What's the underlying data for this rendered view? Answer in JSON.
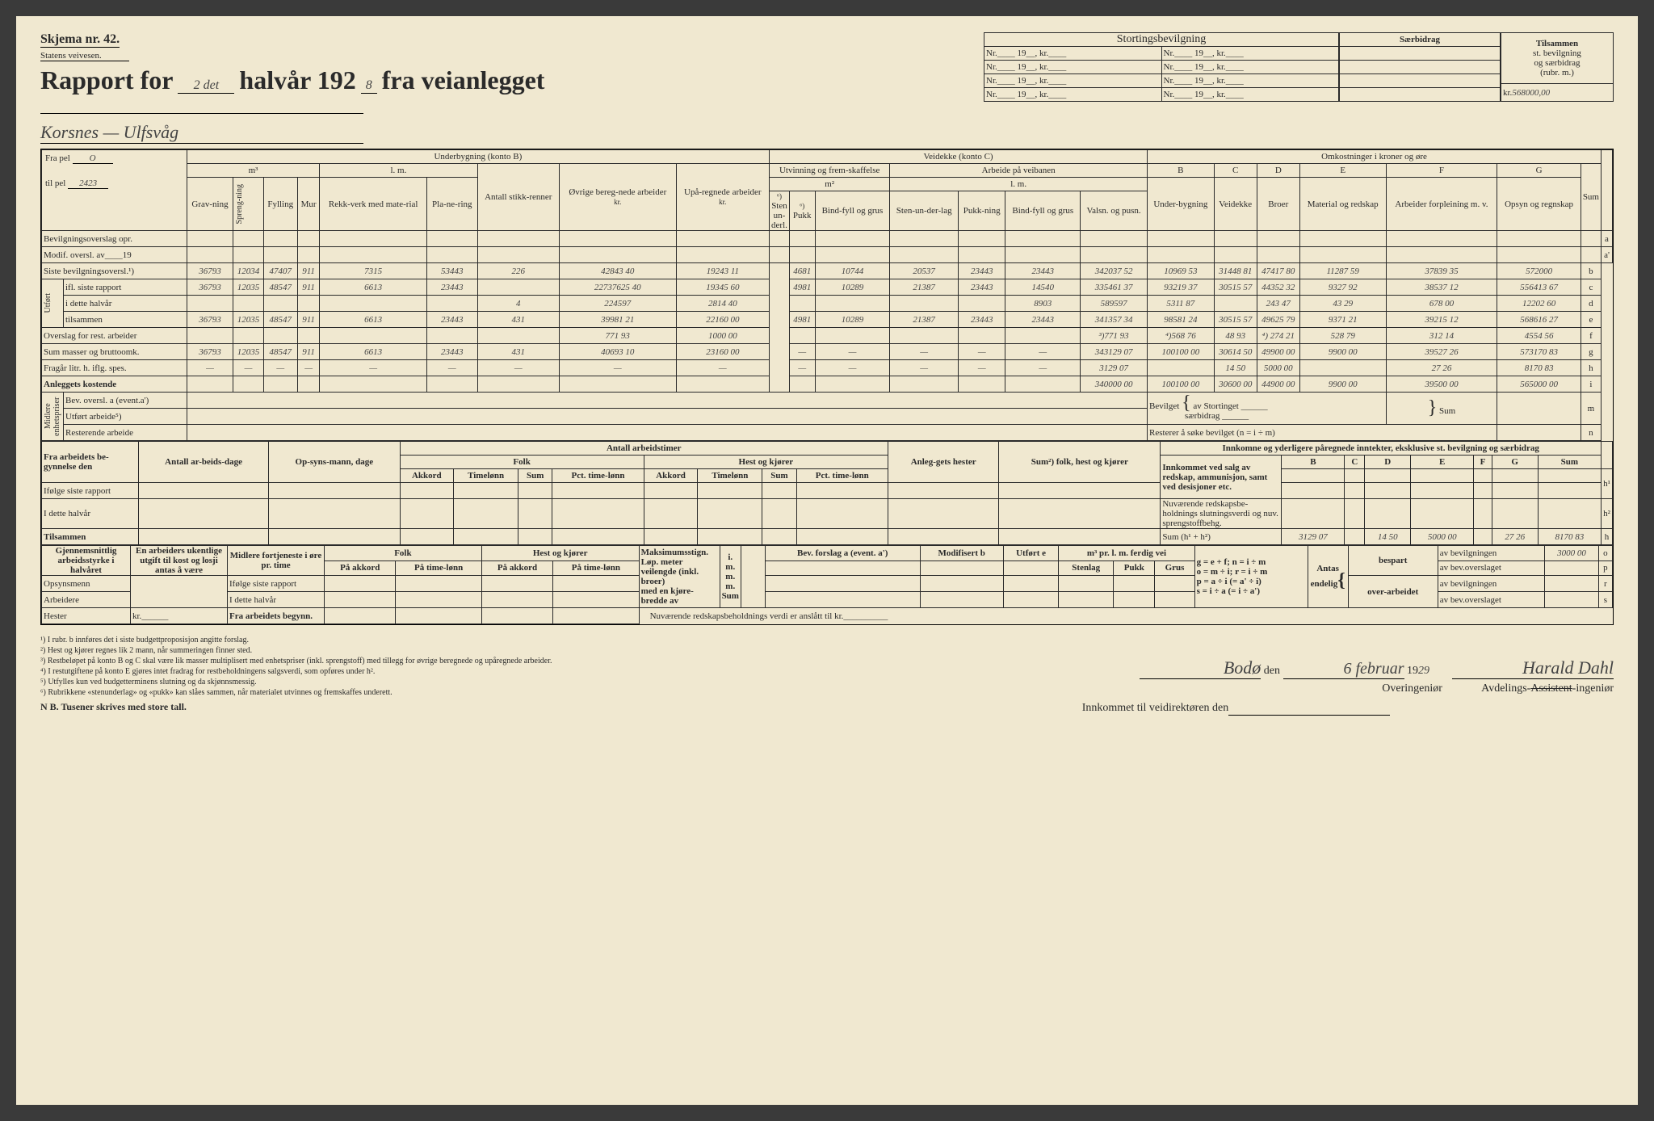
{
  "form": {
    "skjema": "Skjema nr. 42.",
    "statens": "Statens veivesen.",
    "rapport_for": "Rapport for",
    "halvaar_num": "2 det",
    "halvaar_label": "halvår 192",
    "year_digit": "8",
    "fra_vei": "fra veianlegget",
    "road_name": "Korsnes — Ulfsvåg"
  },
  "stortings": {
    "title": "Stortingsbevilgning",
    "rows": [
      [
        "Nr.",
        "19",
        ", kr.",
        "Nr.",
        "19",
        ", kr."
      ],
      [
        "Nr.",
        "19",
        ", kr.",
        "Nr.",
        "19",
        ", kr."
      ],
      [
        "Nr.",
        "19",
        ", kr.",
        "Nr.",
        "19",
        ", kr."
      ],
      [
        "Nr.",
        "19",
        ", kr.",
        "Nr.",
        "19",
        ", kr."
      ]
    ]
  },
  "saerbidrag": {
    "title": "Særbidrag"
  },
  "tilsammen": {
    "line1": "Tilsammen",
    "line2": "st. bevilgning",
    "line3": "og særbidrag",
    "line4": "(rubr. m.)",
    "kr_label": "kr.",
    "value": "568000,00"
  },
  "pel": {
    "fra": "Fra pel",
    "fra_val": "O",
    "til": "til pel",
    "til_val": "2423"
  },
  "section_headers": {
    "underbygning": "Underbygning (konto B)",
    "veidekke": "Veidekke (konto C)",
    "omkost": "Omkostninger i kroner og øre",
    "m3": "m³",
    "lm": "l. m.",
    "antall_stikk": "Antall stikk-renner",
    "ovrige": "Øvrige bereg-nede arbeider",
    "upa": "Upå-regnede arbeider",
    "utvinning": "Utvinning og frem-skaffelse",
    "m2": "m²",
    "arbeide_vei": "Arbeide på veibanen"
  },
  "cols_ub": [
    "Grav-ning",
    "Spreng-ning",
    "Fylling",
    "Mur",
    "Rekk-verk med mate-rial",
    "Pla-ne-ring"
  ],
  "cols_vd_m2": [
    "Sten un-derl.",
    "Pukk",
    "Bind-fyll og grus"
  ],
  "cols_vd_lm": [
    "Sten-un-der-lag",
    "Pukk-ning",
    "Bind-fyll og grus",
    "Valsn. og pusn."
  ],
  "cols_cost": {
    "B": "Under-bygning",
    "C": "Veidekke",
    "D": "Broer",
    "E": "Material og redskap",
    "F": "Arbeider forpleining m. v.",
    "G": "Opsyn og regnskap",
    "Sum": "Sum"
  },
  "row_letters": [
    "a",
    "a'",
    "b",
    "c",
    "d",
    "e",
    "f",
    "g",
    "h",
    "i",
    "m",
    "n"
  ],
  "main_rows": {
    "bev_overslag": "Bevilgningsoverslag opr.",
    "modif": "Modif. oversl. av____19",
    "siste_bev": "Siste bevilgningsoversl.¹)",
    "utfort_label": "Utført",
    "ifl_siste": "ifl. siste rapport",
    "i_dette": "i dette halvår",
    "tilsammen": "tilsammen",
    "overslag_rest": "Overslag for rest. arbeider",
    "sum_masser": "Sum masser og bruttoomk.",
    "fragar": "Fragår litr. h. iflg. spes.",
    "anleggets": "Anleggets kostende",
    "midlere_label": "Midlere enhetspriser",
    "bev_oversl_a": "Bev. oversl. a (event.a')",
    "utfort_arb": "Utført arbeide⁵)",
    "resterende": "Resterende arbeide"
  },
  "data": {
    "siste_bev": [
      "36793",
      "12034",
      "47407",
      "911",
      "7315",
      "53443",
      "226",
      "42843 40",
      "19243 11",
      "",
      "4681",
      "10744",
      "20537",
      "23443",
      "23443",
      "342037 52",
      "10969 53",
      "31448 81",
      "47417 80",
      "11287 59",
      "37839 35",
      "572000"
    ],
    "ifl_siste": [
      "36793",
      "12035",
      "48547",
      "911",
      "6613",
      "23443",
      "",
      "22737625 40",
      "19345 60",
      "",
      "4981",
      "10289",
      "21387",
      "23443",
      "14540",
      "335461 37",
      "93219 37",
      "30515 57",
      "44352 32",
      "9327 92",
      "38537 12",
      "556413 67"
    ],
    "i_dette": [
      "",
      "",
      "",
      "",
      "",
      "",
      "4",
      "224597",
      "2814 40",
      "",
      "",
      "",
      "",
      "",
      "8903",
      "589597",
      "5311 87",
      "",
      "243 47",
      "43 29",
      "678 00",
      "12202 60"
    ],
    "tilsammen": [
      "36793",
      "12035",
      "48547",
      "911",
      "6613",
      "23443",
      "431",
      "39981 21",
      "22160 00",
      "",
      "4981",
      "10289",
      "21387",
      "23443",
      "23443",
      "341357 34",
      "98581 24",
      "30515 57",
      "49625 79",
      "9371 21",
      "39215 12",
      "568616 27"
    ],
    "overslag": [
      "",
      "",
      "",
      "",
      "",
      "",
      "",
      "771 93",
      "1000 00",
      "",
      "",
      "",
      "",
      "",
      "",
      "³)771 93",
      "⁴)568 76",
      "48 93",
      "⁴) 274 21",
      "528 79",
      "312 14",
      "4554 56"
    ],
    "sum_masser": [
      "36793",
      "12035",
      "48547",
      "911",
      "6613",
      "23443",
      "431",
      "40693 10",
      "23160 00",
      "",
      "—",
      "—",
      "—",
      "—",
      "—",
      "343129 07",
      "100100 00",
      "30614 50",
      "49900 00",
      "9900 00",
      "39527 26",
      "573170 83"
    ],
    "fragar": [
      "—",
      "—",
      "—",
      "—",
      "—",
      "—",
      "—",
      "—",
      "—",
      "",
      "—",
      "—",
      "—",
      "—",
      "—",
      "3129 07",
      "",
      "14 50",
      "5000 00",
      "",
      "27 26",
      "8170 83"
    ],
    "anleggets": [
      "",
      "",
      "",
      "",
      "",
      "",
      "",
      "",
      "",
      "",
      "",
      "",
      "",
      "",
      "",
      "340000 00",
      "100100 00",
      "30600 00",
      "44900 00",
      "9900 00",
      "39500 00",
      "565000 00"
    ]
  },
  "bevilget_box": {
    "bevilget": "Bevilget",
    "av_stort": "av Stortinget",
    "saer": "særbidrag",
    "sum": "Sum",
    "rest": "Resterer å søke bevilget (n = i ÷ m)"
  },
  "mid_section": {
    "fra_arbeidets": "Fra arbeidets be-gynnelse den",
    "antall_arb": "Antall ar-beids-dage",
    "opsyn": "Op-syns-mann, dage",
    "antall_timer": "Antall arbeidstimer",
    "folk": "Folk",
    "hest": "Hest og kjører",
    "akkord": "Akkord",
    "timelonn": "Timelønn",
    "sum": "Sum",
    "pct": "Pct. time-lønn",
    "anleg": "Anleg-gets hester",
    "sum2": "Sum²) folk, hest og kjører",
    "innkomne": "Innkomne og yderligere påregnede inntekter, eksklusive st. bevilgning og særbidrag",
    "ifolge": "Ifølge siste rapport",
    "i_dette": "I dette halvår",
    "tilsammen": "Tilsammen",
    "innkommet": "Innkommet ved salg av redskap, ammunisjon, samt ved desisjoner etc.",
    "nuvaerende": "Nuværende redskapsbe-holdnings slutningsverdi og nuv. sprengstoffbehg.",
    "sum_h": "Sum (h¹ + h²)"
  },
  "sum_h_data": [
    "3129 07",
    "",
    "14 50",
    "5000 00",
    "",
    "27 26",
    "8170 83"
  ],
  "bottom": {
    "gjennem": "Gjennemsnittlig arbeidsstyrke i halvåret",
    "en_arb": "En arbeiders ukentlige utgift til kost og losji antas å være",
    "midlere": "Midlere fortjeneste i øre pr. time",
    "opsyn": "Opsynsmenn",
    "arbeidere": "Arbeidere",
    "hester": "Hester",
    "kr": "kr.",
    "ifolge": "Ifølge siste rapport",
    "idette": "I dette halvår",
    "fra_arb": "Fra arbeidets begynn.",
    "pa_akkord": "På akkord",
    "pa_time": "På time-lønn",
    "max": "Maksimumsstign.",
    "lop": "Løp. meter veilengde (inkl. broer)",
    "med_en": "med en kjøre-bredde av",
    "m": "m.",
    "sum": "Sum",
    "bev_forslag": "Bev. forslag a (event. a')",
    "modif": "Modifisert b",
    "utfort_e": "Utført e",
    "m3pr": "m³ pr. l. m. ferdig vei",
    "stenlag": "Stenlag",
    "pukk": "Pukk",
    "grus": "Grus",
    "formulas": [
      "g = e + f; n = i ÷ m",
      "o = m ÷ i; r = i ÷ m",
      "p =  a ÷ i  (= a' ÷ i)",
      "s  =  i ÷ a  (= i ÷ a')"
    ],
    "antas": "Antas endelig",
    "bespart": "bespart",
    "over": "over-arbeidet",
    "av_bev": "av bevilgningen",
    "av_ov": "av bev.overslaget",
    "nuv_red": "Nuværende redskapsbeholdnings verdi er anslått til kr.",
    "av_bev_val": "3000 00"
  },
  "footnotes": [
    "¹)  I rubr. b innføres det i siste budgettproposisjon angitte forslag.",
    "²)  Hest og kjører regnes lik 2 mann, når summeringen finner sted.",
    "³)  Restbeløpet på konto B og C skal være lik masser multiplisert med enhetspriser (inkl. sprengstoff) med tillegg for øvrige beregnede og upåregnede arbeider.",
    "⁴)  I restutgiftene på konto E gjøres intet fradrag for restbeholdningens salgsverdi, som opføres under h².",
    "⁵)  Utfylles kun ved budgetterminens slutning og da skjønnsmessig.",
    "⁶)  Rubrikkene «stenunderlag» og «pukk» kan slåes sammen, når materialet utvinnes og fremskaffes underett."
  ],
  "nb": "N B.  Tusener skrives med store tall.",
  "sig": {
    "place": "Bodø",
    "den": "den",
    "date": "6 februar",
    "year": "1929",
    "over": "Overingeniør",
    "avd": "Avdelings-",
    "assistant_strike": "Assistent",
    "ing": "ingeniør",
    "name": "Harald Dahl",
    "innkommet": "Innkommet til veidirektøren den"
  },
  "colors": {
    "bg": "#f0e8d0",
    "ink": "#2a2a2a",
    "handwriting": "#555"
  }
}
